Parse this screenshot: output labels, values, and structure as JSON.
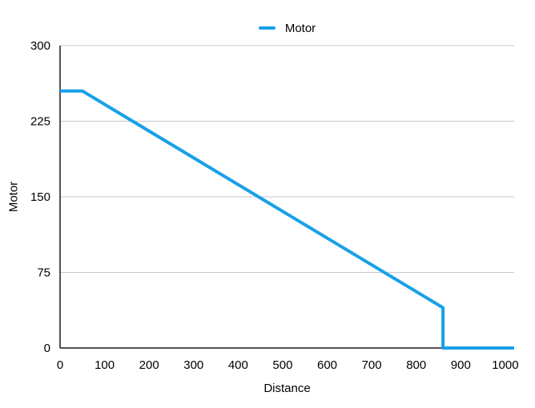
{
  "chart_data": {
    "type": "line",
    "title": "",
    "xlabel": "Distance",
    "ylabel": "Motor",
    "xlim": [
      0,
      1020
    ],
    "ylim": [
      0,
      300
    ],
    "x_ticks": [
      0,
      100,
      200,
      300,
      400,
      500,
      600,
      700,
      800,
      900,
      1000
    ],
    "y_ticks": [
      0,
      75,
      150,
      225,
      300
    ],
    "grid": "horizontal",
    "legend": {
      "position": "top-center",
      "label": "Motor"
    },
    "series": [
      {
        "name": "Motor",
        "color": "#18a0e8",
        "points": [
          [
            0,
            255
          ],
          [
            50,
            255
          ],
          [
            860,
            40
          ],
          [
            860,
            0
          ],
          [
            1020,
            0
          ]
        ]
      }
    ],
    "colors": {
      "line": "#18a0e8",
      "grid": "#c8c8c8",
      "axis": "#1a1a1a",
      "text": "#000000",
      "background": "#ffffff"
    }
  }
}
